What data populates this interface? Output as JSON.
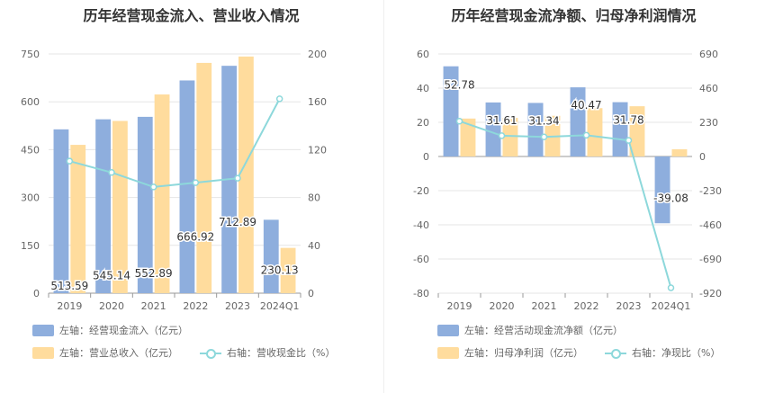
{
  "colors": {
    "bar_primary": "#8eaedd",
    "bar_secondary": "#ffdc9d",
    "line": "#8dd8db",
    "grid": "#e6e6e6",
    "axis_text": "#666666"
  },
  "chart_data": [
    {
      "type": "bar",
      "title": "历年经营现金流入、营业收入情况",
      "categories": [
        "2019",
        "2020",
        "2021",
        "2022",
        "2023",
        "2024Q1"
      ],
      "left_axis": {
        "ylim": [
          0,
          750
        ],
        "ticks": [
          "0",
          "150",
          "300",
          "450",
          "600",
          "750"
        ]
      },
      "right_axis": {
        "ylim": [
          0,
          200
        ],
        "ticks": [
          "0",
          "40",
          "80",
          "120",
          "160",
          "200"
        ]
      },
      "grid": true,
      "series": [
        {
          "name": "左轴：经营现金流入（亿元）",
          "type": "bar",
          "axis": "left",
          "color": "#8eaedd",
          "values": [
            513.59,
            545.14,
            552.89,
            666.92,
            712.89,
            230.13
          ],
          "labels": [
            "513.59",
            "545.14",
            "552.89",
            "666.92",
            "712.89",
            "230.13"
          ]
        },
        {
          "name": "左轴：营业总收入（亿元）",
          "type": "bar",
          "axis": "left",
          "color": "#ffdc9d",
          "values": [
            465,
            540,
            623,
            722,
            742,
            142
          ]
        },
        {
          "name": "右轴：营收现金比（%）",
          "type": "line",
          "axis": "right",
          "color": "#8dd8db",
          "values": [
            110.4,
            100.9,
            88.8,
            92.4,
            96.1,
            162.5
          ]
        }
      ],
      "legend": {
        "position": "bottom"
      }
    },
    {
      "type": "bar",
      "title": "历年经营现金流净额、归母净利润情况",
      "categories": [
        "2019",
        "2020",
        "2021",
        "2022",
        "2023",
        "2024Q1"
      ],
      "left_axis": {
        "ylim": [
          -80,
          60
        ],
        "ticks": [
          "-80",
          "-60",
          "-40",
          "-20",
          "0",
          "20",
          "40",
          "60"
        ]
      },
      "right_axis": {
        "ylim": [
          -920,
          690
        ],
        "ticks": [
          "-920",
          "-690",
          "-460",
          "-230",
          "0",
          "230",
          "460",
          "690"
        ]
      },
      "grid": true,
      "series": [
        {
          "name": "左轴：经营活动现金流净额（亿元）",
          "type": "bar",
          "axis": "left",
          "color": "#8eaedd",
          "values": [
            52.78,
            31.61,
            31.34,
            40.47,
            31.78,
            -39.08
          ],
          "labels": [
            "52.78",
            "31.61",
            "31.34",
            "40.47",
            "31.78",
            "-39.08"
          ]
        },
        {
          "name": "左轴：归母净利润（亿元）",
          "type": "bar",
          "axis": "left",
          "color": "#ffdc9d",
          "values": [
            22.2,
            22.6,
            23.8,
            28.3,
            29.4,
            4.2
          ]
        },
        {
          "name": "右轴：净现比（%）",
          "type": "line",
          "axis": "right",
          "color": "#8dd8db",
          "values": [
            237.7,
            139.9,
            131.7,
            143.0,
            108.1,
            -884
          ]
        }
      ],
      "legend": {
        "position": "bottom"
      }
    }
  ]
}
